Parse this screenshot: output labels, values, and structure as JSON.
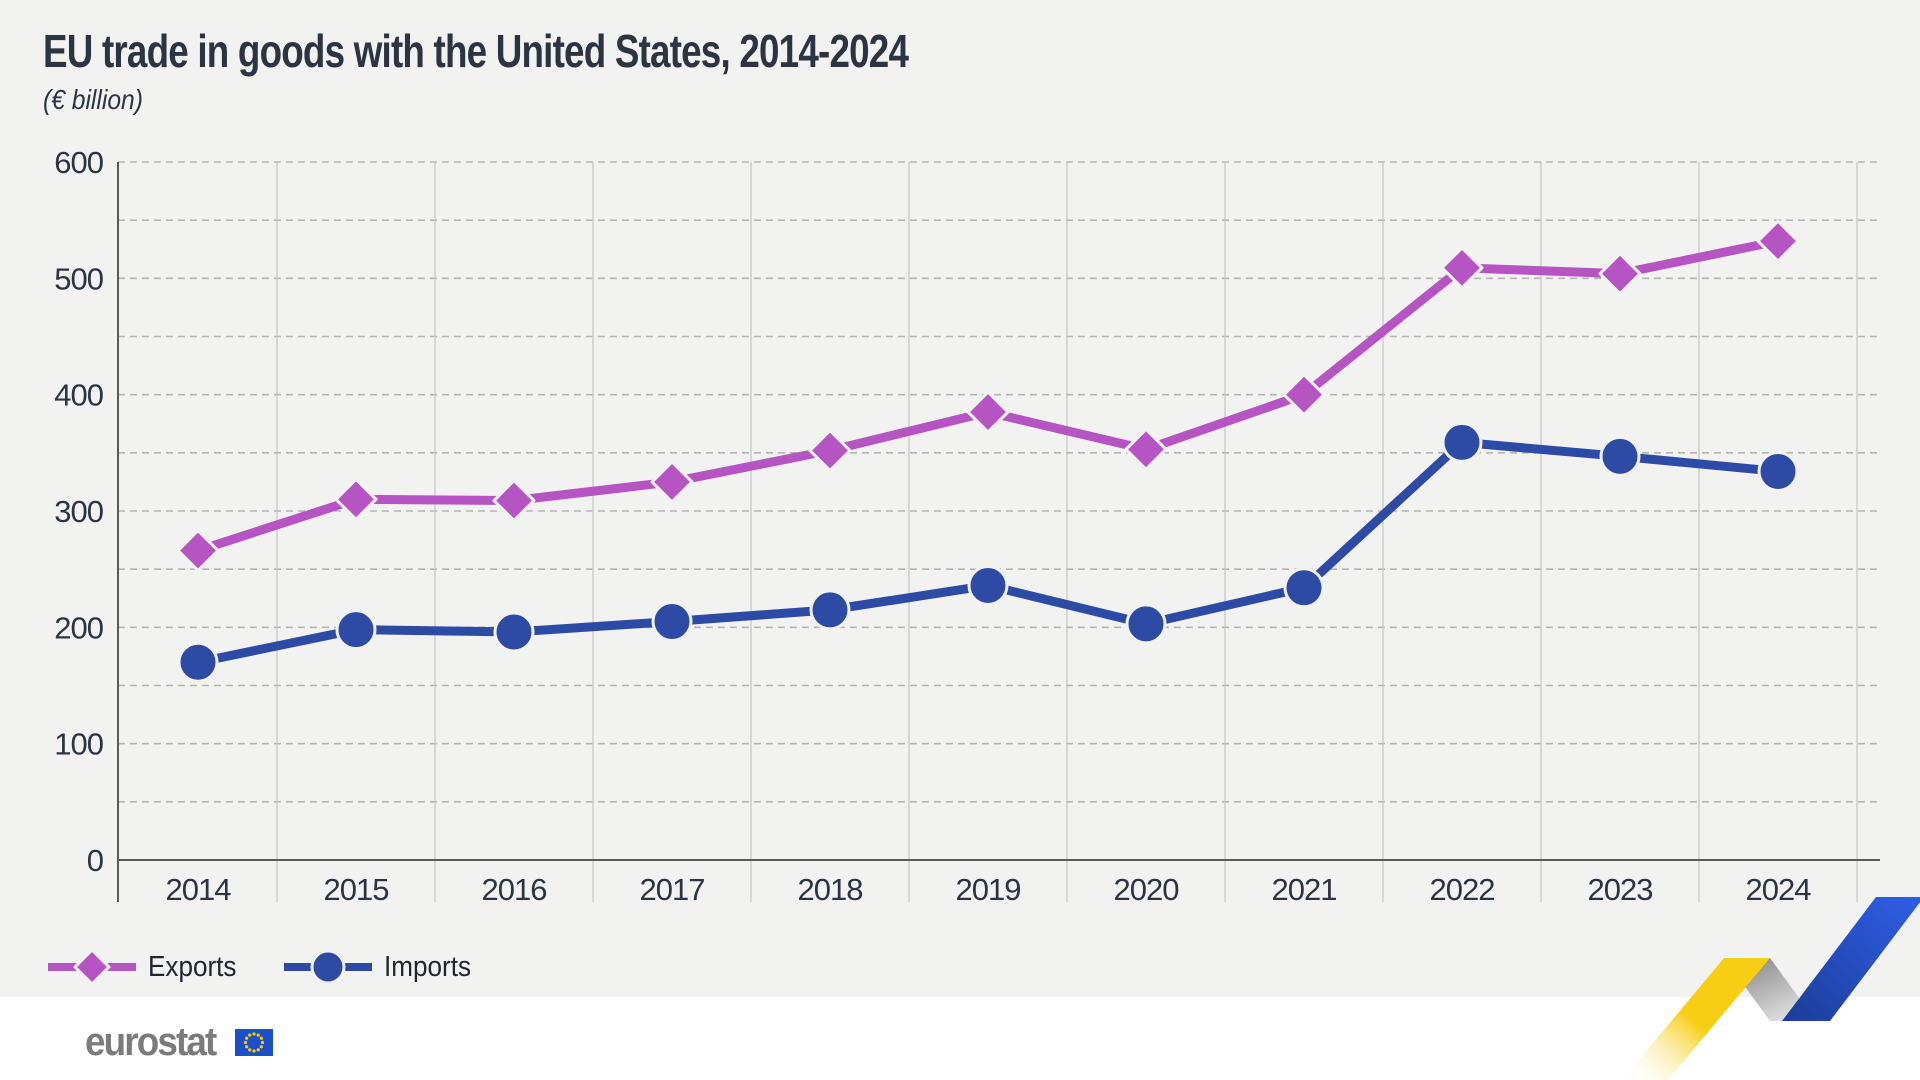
{
  "title": "EU trade in goods with the United States, 2014-2024",
  "subtitle": "(€ billion)",
  "chart_data": {
    "type": "line",
    "categories": [
      "2014",
      "2015",
      "2016",
      "2017",
      "2018",
      "2019",
      "2020",
      "2021",
      "2022",
      "2023",
      "2024"
    ],
    "series": [
      {
        "name": "Exports",
        "marker": "diamond",
        "color": "#b554c2",
        "values": [
          266,
          310,
          309,
          325,
          352,
          385,
          353,
          400,
          509,
          504,
          532
        ]
      },
      {
        "name": "Imports",
        "marker": "circle",
        "color": "#2d4ba4",
        "values": [
          170,
          198,
          196,
          205,
          215,
          236,
          203,
          234,
          359,
          347,
          334
        ]
      }
    ],
    "title": "EU trade in goods with the United States, 2014-2024",
    "subtitle": "(€ billion)",
    "xlabel": "",
    "ylabel": "",
    "ylim": [
      0,
      600
    ],
    "ytick_labels": [
      "0",
      "100",
      "200",
      "300",
      "400",
      "500",
      "600"
    ],
    "grid": "on",
    "grid_minor_step": 50,
    "legend_position": "bottom-left"
  },
  "legend": {
    "items": [
      {
        "label": "Exports",
        "marker": "diamond",
        "color": "#b554c2"
      },
      {
        "label": "Imports",
        "marker": "circle",
        "color": "#2d4ba4"
      }
    ]
  },
  "branding": {
    "logo_text": "eurostat",
    "flag_blue": "#1d50c8",
    "flag_star_color": "#ffcc00"
  },
  "colors": {
    "chart_background": "#f2f2f1",
    "text_dark": "#2b3442",
    "axis_line": "#5a5a5a",
    "grid_dashed": "#b4b4b4",
    "grid_vertical": "#c8c8c8",
    "exports": "#b554c2",
    "imports": "#2d4ba4",
    "ribbon_yellow": "#f8ce14",
    "ribbon_gray": "#909090",
    "ribbon_blue": "#2a55d8"
  }
}
